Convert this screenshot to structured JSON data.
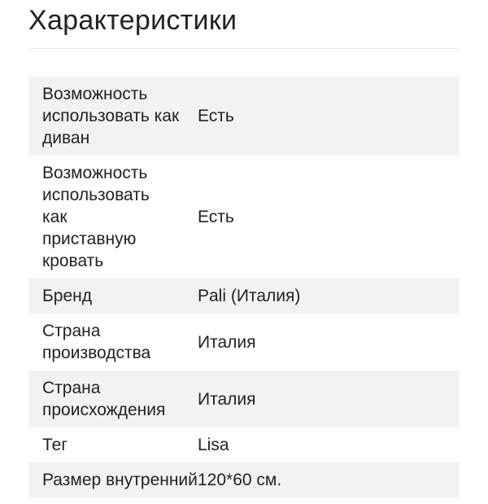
{
  "title": "Характеристики",
  "rows": [
    {
      "label": "Возможность использовать как диван",
      "value": "Есть"
    },
    {
      "label": "Возможность использовать как приставную кровать",
      "value": "Есть"
    },
    {
      "label": "Бренд",
      "value": "Pali (Италия)"
    },
    {
      "label": "Страна производства",
      "value": "Италия"
    },
    {
      "label": "Страна происхождения",
      "value": "Италия"
    },
    {
      "label": "Тег",
      "value": "Lisa"
    },
    {
      "label": "Размер внутренний",
      "value": "120*60 см."
    }
  ]
}
